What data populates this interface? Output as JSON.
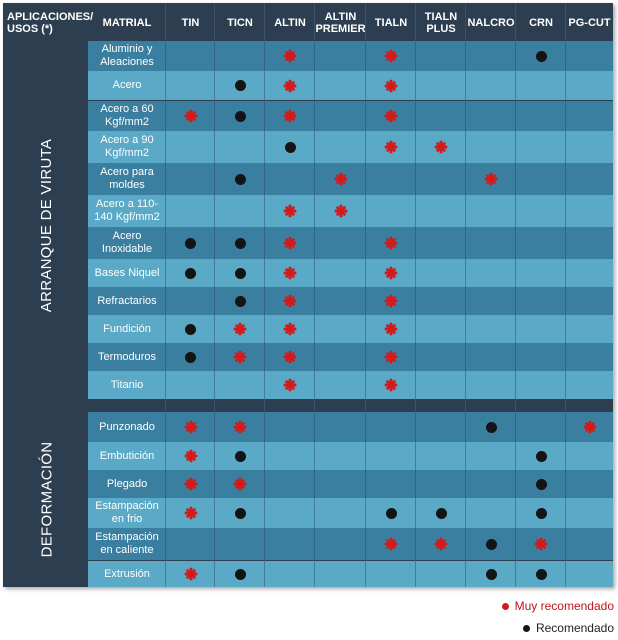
{
  "header": {
    "applications": "APLICACIONES/ USOS (*)",
    "material": "MATRIAL",
    "coatings": [
      "TIN",
      "TICN",
      "ALTIN",
      "ALTIN PREMIER",
      "TIALN",
      "TIALN PLUS",
      "NALCRO",
      "CRN",
      "PG-CUT"
    ]
  },
  "groups": [
    {
      "label": "ARRANQUE DE VIRUTA"
    },
    {
      "label": "DEFORMACIÓN"
    }
  ],
  "rows": [
    {
      "material": "Aluminio y Aleaciones",
      "marks": {
        "ALTIN": "muy",
        "TIALN": "muy",
        "CRN": "rec"
      }
    },
    {
      "material": "Acero",
      "marks": {
        "TICN": "rec",
        "ALTIN": "muy",
        "TIALN": "muy"
      }
    },
    {
      "material": "Acero a 60 Kgf/mm2",
      "marks": {
        "TIN": "muy",
        "TICN": "rec",
        "ALTIN": "muy",
        "TIALN": "muy"
      }
    },
    {
      "material": "Acero a 90 Kgf/mm2",
      "marks": {
        "ALTIN": "rec",
        "TIALN": "muy",
        "TIALN PLUS": "muy"
      }
    },
    {
      "material": "Acero para moldes",
      "marks": {
        "TICN": "rec",
        "ALTIN PREMIER": "muy",
        "NALCRO": "muy"
      }
    },
    {
      "material": "Acero a 110-140 Kgf/mm2",
      "marks": {
        "ALTIN": "muy",
        "ALTIN PREMIER": "muy"
      }
    },
    {
      "material": "Acero Inoxidable",
      "marks": {
        "TIN": "rec",
        "TICN": "rec",
        "ALTIN": "muy",
        "TIALN": "muy"
      }
    },
    {
      "material": "Bases Niquel",
      "marks": {
        "TIN": "rec",
        "TICN": "rec",
        "ALTIN": "muy",
        "TIALN": "muy"
      }
    },
    {
      "material": "Refractarios",
      "marks": {
        "TICN": "rec",
        "ALTIN": "muy",
        "TIALN": "muy"
      }
    },
    {
      "material": "Fundición",
      "marks": {
        "TIN": "rec",
        "TICN": "muy",
        "ALTIN": "muy",
        "TIALN": "muy"
      }
    },
    {
      "material": "Termoduros",
      "marks": {
        "TIN": "rec",
        "TICN": "muy",
        "ALTIN": "muy",
        "TIALN": "muy"
      }
    },
    {
      "material": "Titanio",
      "marks": {
        "ALTIN": "muy",
        "TIALN": "muy"
      }
    },
    {
      "material": "Punzonado",
      "marks": {
        "TIN": "muy",
        "TICN": "muy",
        "NALCRO": "rec",
        "PG-CUT": "muy"
      }
    },
    {
      "material": "Embutición",
      "marks": {
        "TIN": "muy",
        "TICN": "rec",
        "CRN": "rec"
      }
    },
    {
      "material": "Plegado",
      "marks": {
        "TIN": "muy",
        "TICN": "muy",
        "CRN": "rec"
      }
    },
    {
      "material": "Estampación en frio",
      "marks": {
        "TIN": "muy",
        "TICN": "rec",
        "TIALN": "rec",
        "TIALN PLUS": "rec",
        "CRN": "rec"
      }
    },
    {
      "material": "Estampación en caliente",
      "marks": {
        "TIALN": "muy",
        "TIALN PLUS": "muy",
        "NALCRO": "rec",
        "CRN": "muy"
      }
    },
    {
      "material": "Extrusión",
      "marks": {
        "TIN": "muy",
        "TICN": "rec",
        "NALCRO": "rec",
        "CRN": "rec"
      }
    }
  ],
  "legend": {
    "muy": "Muy recomendado",
    "rec": "Recomendado"
  },
  "colors": {
    "muy": "#d21a1a",
    "rec": "#141414"
  }
}
